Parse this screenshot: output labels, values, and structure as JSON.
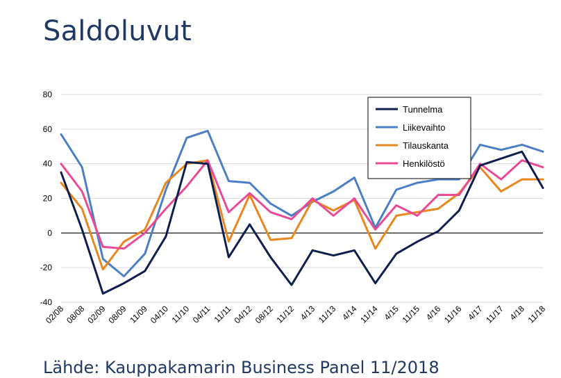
{
  "page": {
    "title": "Saldoluvut",
    "source": "Lähde: Kauppakamarin Business Panel 11/2018"
  },
  "chart_data": {
    "type": "line",
    "ylim": [
      -40,
      80
    ],
    "yticks": [
      -40,
      -20,
      0,
      20,
      40,
      60,
      80
    ],
    "categories": [
      "02/08",
      "08/08",
      "02/09",
      "08/09",
      "11/09",
      "04/10",
      "11/10",
      "04/11",
      "11/11",
      "04/12",
      "08/12",
      "11/12",
      "4/13",
      "11/13",
      "4/14",
      "11/14",
      "4/15",
      "11/15",
      "4/16",
      "11/16",
      "4/17",
      "11/17",
      "4/18",
      "11/18"
    ],
    "legend_position": "top-right",
    "series": [
      {
        "name": "Tunnelma",
        "color": "#0d1f4f",
        "values": [
          35,
          2,
          -35,
          -29,
          -22,
          -2,
          41,
          40,
          -14,
          5,
          -14,
          -30,
          -10,
          -13,
          -10,
          -29,
          -12,
          -5,
          1,
          13,
          39,
          43,
          47,
          26
        ]
      },
      {
        "name": "Liikevaihto",
        "color": "#4a7fc8",
        "values": [
          57,
          38,
          -15,
          -25,
          -12,
          25,
          55,
          59,
          30,
          29,
          17,
          10,
          18,
          24,
          32,
          3,
          25,
          29,
          31,
          31,
          51,
          48,
          51,
          47
        ]
      },
      {
        "name": "Tilauskanta",
        "color": "#e9861c",
        "values": [
          29,
          14,
          -21,
          -5,
          2,
          29,
          40,
          42,
          -5,
          22,
          -4,
          -3,
          19,
          13,
          19,
          -9,
          10,
          12,
          14,
          23,
          38,
          24,
          31,
          31
        ]
      },
      {
        "name": "Henkilöstö",
        "color": "#ea4a95",
        "values": [
          40,
          24,
          -8,
          -9,
          0,
          14,
          27,
          42,
          12,
          23,
          12,
          8,
          20,
          10,
          20,
          2,
          16,
          10,
          22,
          22,
          40,
          31,
          42,
          38
        ]
      }
    ]
  }
}
